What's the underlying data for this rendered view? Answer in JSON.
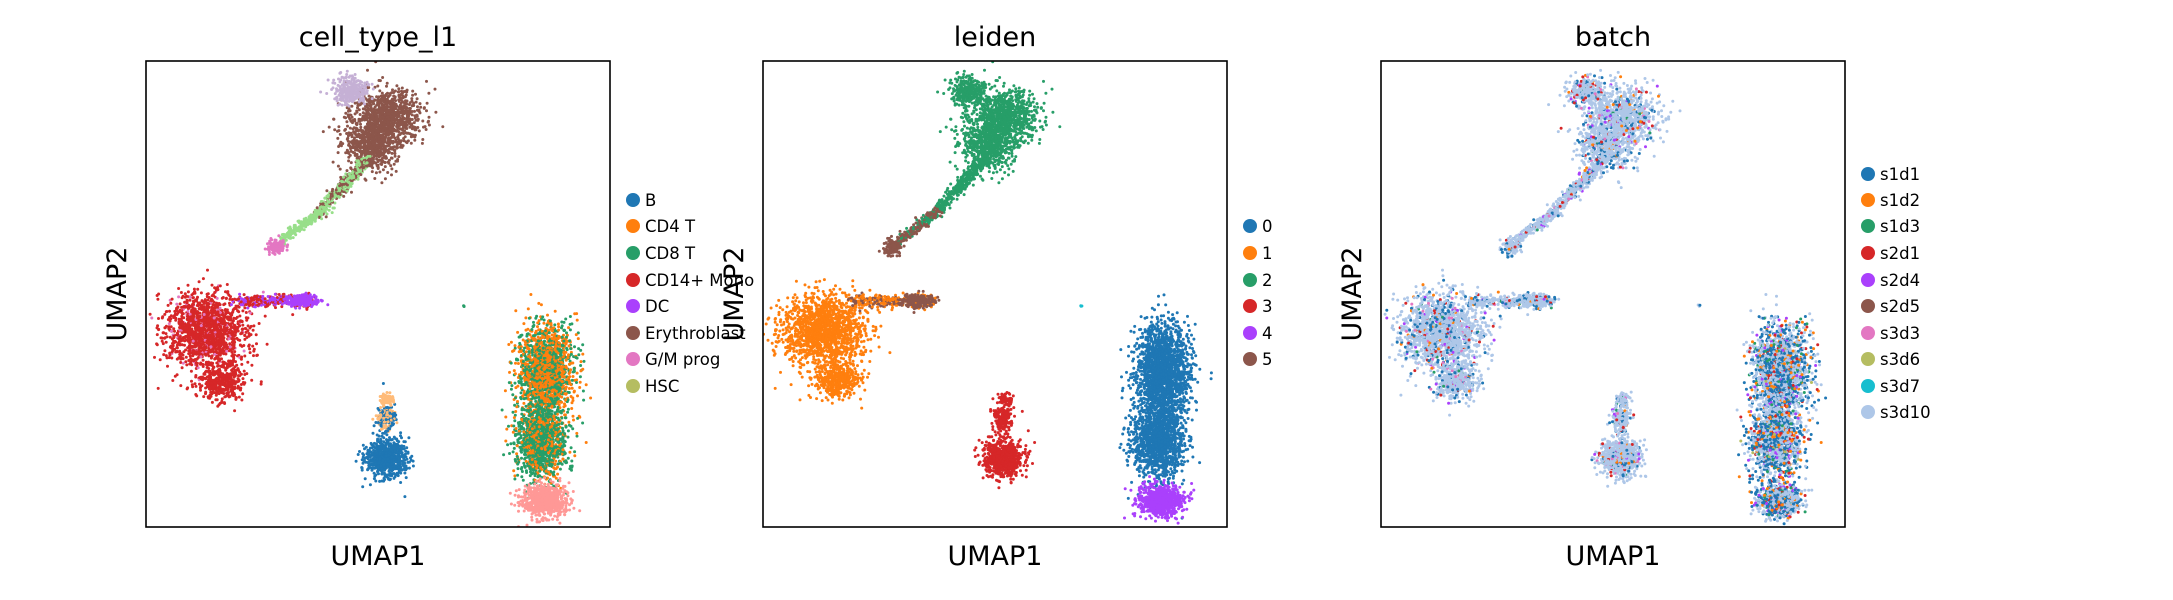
{
  "chart_data": [
    {
      "type": "scatter",
      "title": "cell_type_l1",
      "xlabel": "UMAP1",
      "ylabel": "UMAP2",
      "legend_position": "right",
      "grid": false,
      "series": [
        {
          "name": "B",
          "color": "#1f77b4"
        },
        {
          "name": "CD4 T",
          "color": "#ff7f0e"
        },
        {
          "name": "CD8 T",
          "color": "#279e68"
        },
        {
          "name": "CD14+ Mono",
          "color": "#d62728"
        },
        {
          "name": "DC",
          "color": "#aa40fc"
        },
        {
          "name": "Erythroblast",
          "color": "#8c564b"
        },
        {
          "name": "G/M prog",
          "color": "#e377c2"
        },
        {
          "name": "HSC",
          "color": "#b5bd61"
        }
      ],
      "unlisted_colors": [
        "#ff9896",
        "#98df8a",
        "#c5b0d5",
        "#ffbb78"
      ]
    },
    {
      "type": "scatter",
      "title": "leiden",
      "xlabel": "UMAP1",
      "ylabel": "UMAP2",
      "legend_position": "right",
      "grid": false,
      "series": [
        {
          "name": "0",
          "color": "#1f77b4"
        },
        {
          "name": "1",
          "color": "#ff7f0e"
        },
        {
          "name": "2",
          "color": "#279e68"
        },
        {
          "name": "3",
          "color": "#d62728"
        },
        {
          "name": "4",
          "color": "#aa40fc"
        },
        {
          "name": "5",
          "color": "#8c564b"
        }
      ]
    },
    {
      "type": "scatter",
      "title": "batch",
      "xlabel": "UMAP1",
      "ylabel": "UMAP2",
      "legend_position": "right",
      "grid": false,
      "series": [
        {
          "name": "s1d1",
          "color": "#1f77b4"
        },
        {
          "name": "s1d2",
          "color": "#ff7f0e"
        },
        {
          "name": "s1d3",
          "color": "#279e68"
        },
        {
          "name": "s2d1",
          "color": "#d62728"
        },
        {
          "name": "s2d4",
          "color": "#aa40fc"
        },
        {
          "name": "s2d5",
          "color": "#8c564b"
        },
        {
          "name": "s3d3",
          "color": "#e377c2"
        },
        {
          "name": "s3d6",
          "color": "#b5bd61"
        },
        {
          "name": "s3d7",
          "color": "#17becf"
        },
        {
          "name": "s3d10",
          "color": "#aec7e8"
        }
      ]
    }
  ]
}
